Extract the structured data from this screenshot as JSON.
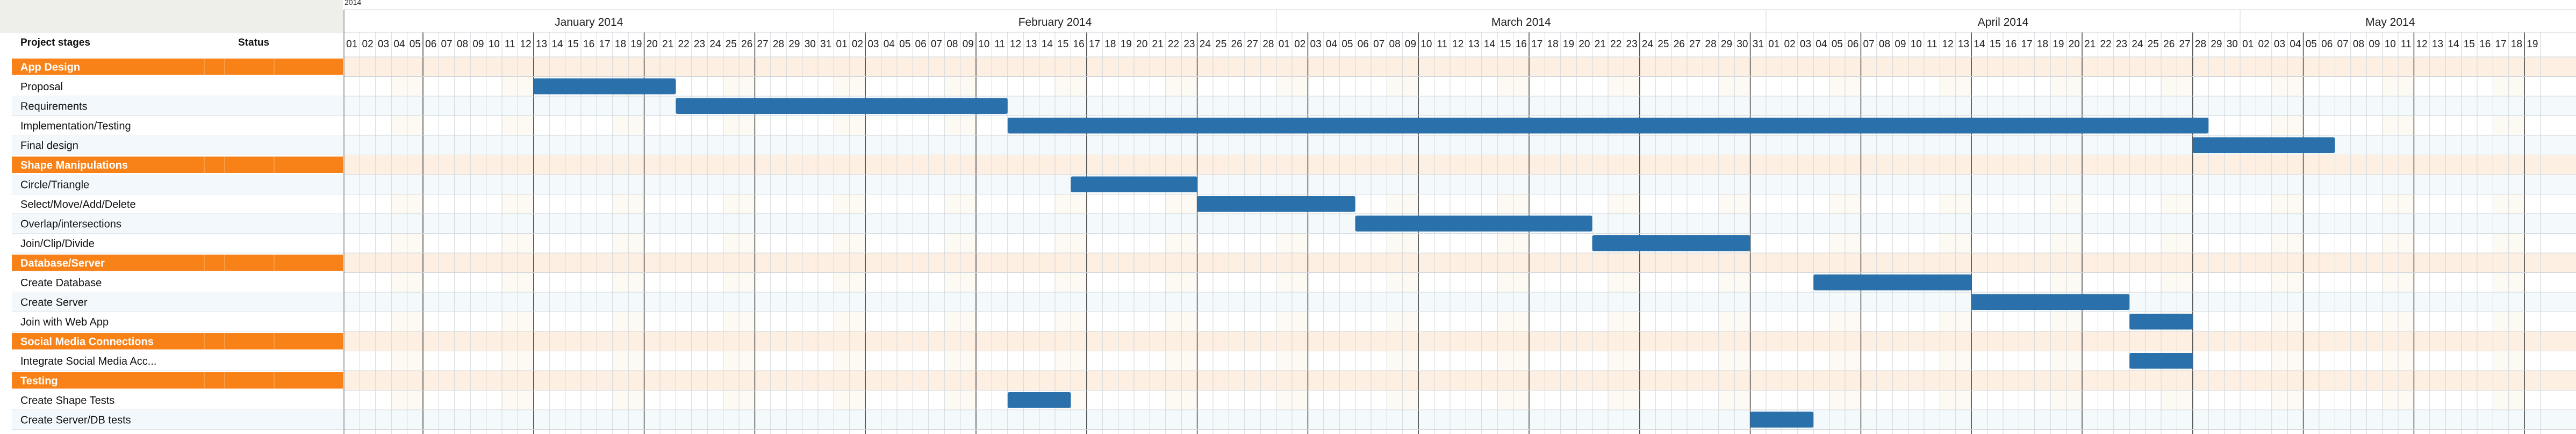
{
  "chart_data": {
    "type": "gantt",
    "year_label": "2014",
    "columns": {
      "stage": "Project stages",
      "status": "Status"
    },
    "timeline": {
      "start": "2014-01-01",
      "end": "2014-05-19"
    },
    "months": [
      {
        "label": "January 2014",
        "start": "2014-01-01"
      },
      {
        "label": "February 2014",
        "start": "2014-02-01"
      },
      {
        "label": "March 2014",
        "start": "2014-03-01"
      },
      {
        "label": "April 2014",
        "start": "2014-04-01"
      },
      {
        "label": "May 2014",
        "start": "2014-05-01"
      }
    ],
    "rows": [
      {
        "type": "group",
        "label": "App Design"
      },
      {
        "type": "task",
        "label": "Proposal",
        "start": "2014-01-13",
        "end": "2014-01-21"
      },
      {
        "type": "task",
        "label": "Requirements",
        "start": "2014-01-22",
        "end": "2014-02-11"
      },
      {
        "type": "task",
        "label": "Implementation/Testing",
        "start": "2014-02-12",
        "end": "2014-04-28"
      },
      {
        "type": "task",
        "label": "Final design",
        "start": "2014-04-28",
        "end": "2014-05-06"
      },
      {
        "type": "group",
        "label": "Shape Manipulations"
      },
      {
        "type": "task",
        "label": "Circle/Triangle",
        "start": "2014-02-16",
        "end": "2014-02-23"
      },
      {
        "type": "task",
        "label": "Select/Move/Add/Delete",
        "start": "2014-02-24",
        "end": "2014-03-05"
      },
      {
        "type": "task",
        "label": "Overlap/intersections",
        "start": "2014-03-06",
        "end": "2014-03-20"
      },
      {
        "type": "task",
        "label": "Join/Clip/Divide",
        "start": "2014-03-21",
        "end": "2014-03-30"
      },
      {
        "type": "group",
        "label": "Database/Server"
      },
      {
        "type": "task",
        "label": "Create Database",
        "start": "2014-04-04",
        "end": "2014-04-13"
      },
      {
        "type": "task",
        "label": "Create Server",
        "start": "2014-04-14",
        "end": "2014-04-23"
      },
      {
        "type": "task",
        "label": "Join with Web App",
        "start": "2014-04-24",
        "end": "2014-04-27"
      },
      {
        "type": "group",
        "label": "Social Media Connections"
      },
      {
        "type": "task",
        "label": "Integrate Social Media Acc...",
        "start": "2014-04-24",
        "end": "2014-04-27"
      },
      {
        "type": "group",
        "label": "Testing"
      },
      {
        "type": "task",
        "label": "Create Shape Tests",
        "start": "2014-02-12",
        "end": "2014-02-15"
      },
      {
        "type": "task",
        "label": "Create Server/DB tests",
        "start": "2014-03-31",
        "end": "2014-04-03"
      }
    ],
    "colors": {
      "bar": "#2a71ac",
      "group": "#f98218",
      "group_band": "#fdf0e3",
      "alt_row": "#f2f8fb",
      "weekend": "#fdfaf4",
      "grid": "#cfd6db",
      "week": "#555555",
      "header_bg": "#eeeeea"
    }
  }
}
